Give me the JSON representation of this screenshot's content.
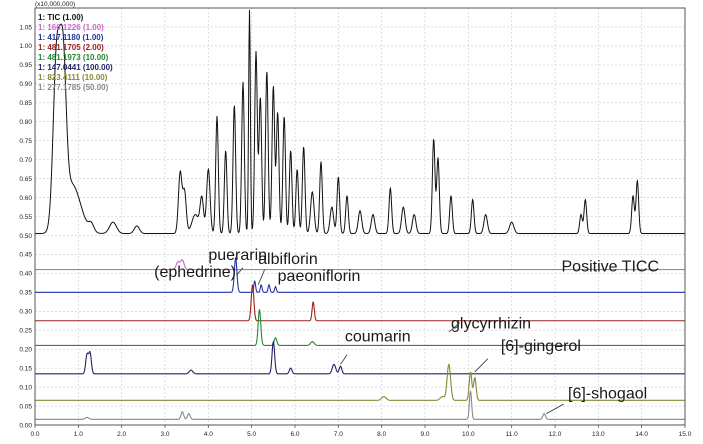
{
  "chart_data": {
    "type": "line",
    "title": "",
    "xlabel": "",
    "ylabel": "",
    "xlim": [
      0.0,
      15.0
    ],
    "ylim": [
      0.0,
      1.1
    ],
    "multiplier_label": "(x10,000,000)",
    "x_ticks": [
      "0.0",
      "1.0",
      "2.0",
      "3.0",
      "4.0",
      "5.0",
      "6.0",
      "7.0",
      "8.0",
      "9.0",
      "10.0",
      "11.0",
      "12.0",
      "13.0",
      "14.0",
      "15.0"
    ],
    "y_ticks": [
      "0.00",
      "0.05",
      "0.10",
      "0.15",
      "0.20",
      "0.25",
      "0.30",
      "0.35",
      "0.40",
      "0.45",
      "0.50",
      "0.55",
      "0.60",
      "0.65",
      "0.70",
      "0.75",
      "0.80",
      "0.85",
      "0.90",
      "0.95",
      "1.00",
      "1.05"
    ],
    "legend_position": "top-left",
    "legend": [
      {
        "text": "1: TIC (1.00)",
        "color": "#111111"
      },
      {
        "text": "1: 166.1226 (1.00)",
        "color": "#cc66cc"
      },
      {
        "text": "1: 417.1180 (1.00)",
        "color": "#2233aa"
      },
      {
        "text": "1: 481.1705 (2.00)",
        "color": "#992222"
      },
      {
        "text": "1: 481.1973 (10.00)",
        "color": "#228833"
      },
      {
        "text": "1: 147.0441 (100.00)",
        "color": "#222266"
      },
      {
        "text": "1: 823.4111 (10.00)",
        "color": "#888833"
      },
      {
        "text": "1: 277.1785 (50.00)",
        "color": "#888888"
      }
    ],
    "series": [
      {
        "color": "#111111",
        "baseline": 0.505,
        "peaks": [
          [
            0.5,
            0.45,
            0.08
          ],
          [
            0.65,
            0.37,
            0.07
          ],
          [
            0.85,
            0.13,
            0.2
          ],
          [
            1.3,
            0.02,
            0.06
          ],
          [
            1.8,
            0.03,
            0.08
          ],
          [
            2.35,
            0.02,
            0.06
          ],
          [
            3.35,
            0.16,
            0.04
          ],
          [
            3.45,
            0.11,
            0.04
          ],
          [
            3.7,
            0.05,
            0.08
          ],
          [
            3.85,
            0.09,
            0.04
          ],
          [
            4.0,
            0.17,
            0.04
          ],
          [
            4.2,
            0.31,
            0.03
          ],
          [
            4.4,
            0.22,
            0.03
          ],
          [
            4.6,
            0.34,
            0.03
          ],
          [
            4.8,
            0.4,
            0.03
          ],
          [
            4.95,
            0.59,
            0.02
          ],
          [
            5.1,
            0.48,
            0.03
          ],
          [
            5.2,
            0.36,
            0.03
          ],
          [
            5.35,
            0.43,
            0.03
          ],
          [
            5.5,
            0.39,
            0.03
          ],
          [
            5.6,
            0.32,
            0.03
          ],
          [
            5.75,
            0.31,
            0.03
          ],
          [
            5.9,
            0.22,
            0.03
          ],
          [
            6.05,
            0.17,
            0.03
          ],
          [
            6.2,
            0.23,
            0.03
          ],
          [
            6.4,
            0.11,
            0.04
          ],
          [
            6.6,
            0.19,
            0.03
          ],
          [
            6.85,
            0.07,
            0.04
          ],
          [
            7.0,
            0.15,
            0.03
          ],
          [
            7.2,
            0.1,
            0.03
          ],
          [
            7.5,
            0.06,
            0.04
          ],
          [
            7.8,
            0.05,
            0.04
          ],
          [
            8.2,
            0.12,
            0.03
          ],
          [
            8.5,
            0.07,
            0.04
          ],
          [
            8.75,
            0.05,
            0.04
          ],
          [
            9.2,
            0.25,
            0.03
          ],
          [
            9.3,
            0.2,
            0.03
          ],
          [
            9.6,
            0.1,
            0.03
          ],
          [
            10.1,
            0.09,
            0.03
          ],
          [
            10.4,
            0.05,
            0.04
          ],
          [
            11.0,
            0.03,
            0.05
          ],
          [
            12.6,
            0.05,
            0.03
          ],
          [
            12.7,
            0.09,
            0.03
          ],
          [
            13.8,
            0.1,
            0.03
          ],
          [
            13.9,
            0.14,
            0.03
          ]
        ]
      },
      {
        "color": "#cc66cc",
        "baseline": 0.41,
        "peaks": [
          [
            3.3,
            0.02,
            0.04
          ],
          [
            3.4,
            0.025,
            0.04
          ]
        ]
      },
      {
        "color": "#2233aa",
        "baseline": 0.35,
        "peaks": [
          [
            4.63,
            0.09,
            0.03
          ],
          [
            5.07,
            0.03,
            0.02
          ],
          [
            5.22,
            0.02,
            0.02
          ],
          [
            5.4,
            0.02,
            0.02
          ],
          [
            5.55,
            0.015,
            0.02
          ]
        ]
      },
      {
        "color": "#992222",
        "baseline": 0.275,
        "peaks": [
          [
            5.02,
            0.095,
            0.03
          ],
          [
            6.42,
            0.05,
            0.025
          ]
        ]
      },
      {
        "color": "#228833",
        "baseline": 0.21,
        "peaks": [
          [
            5.18,
            0.095,
            0.03
          ],
          [
            5.55,
            0.02,
            0.03
          ],
          [
            6.4,
            0.01,
            0.04
          ]
        ]
      },
      {
        "color": "#222266",
        "baseline": 0.135,
        "peaks": [
          [
            1.2,
            0.05,
            0.03
          ],
          [
            1.27,
            0.055,
            0.03
          ],
          [
            3.6,
            0.01,
            0.04
          ],
          [
            5.5,
            0.085,
            0.03
          ],
          [
            5.9,
            0.015,
            0.03
          ],
          [
            6.9,
            0.025,
            0.04
          ],
          [
            7.05,
            0.02,
            0.03
          ]
        ]
      },
      {
        "color": "#888833",
        "baseline": 0.065,
        "peaks": [
          [
            8.05,
            0.01,
            0.05
          ],
          [
            9.4,
            0.01,
            0.05
          ],
          [
            9.55,
            0.095,
            0.04
          ],
          [
            10.05,
            0.075,
            0.03
          ],
          [
            10.15,
            0.06,
            0.03
          ]
        ]
      },
      {
        "color": "#888888",
        "baseline": 0.015,
        "peaks": [
          [
            1.2,
            0.005,
            0.04
          ],
          [
            3.4,
            0.02,
            0.03
          ],
          [
            3.55,
            0.015,
            0.03
          ],
          [
            10.05,
            0.075,
            0.025
          ],
          [
            11.75,
            0.015,
            0.03
          ]
        ]
      }
    ],
    "annotations": [
      {
        "text": "puerarin",
        "x": 4.0,
        "y": 0.435
      },
      {
        "text": "albiflorin",
        "x": 5.15,
        "y": 0.425
      },
      {
        "text": "(ephedrine)",
        "x": 2.75,
        "y": 0.39
      },
      {
        "text": "paeoniflorin",
        "x": 5.6,
        "y": 0.38
      },
      {
        "text": "Positive TICC",
        "x": 12.15,
        "y": 0.405
      },
      {
        "text": "glycyrrhizin",
        "x": 9.6,
        "y": 0.255
      },
      {
        "text": "coumarin",
        "x": 7.15,
        "y": 0.22
      },
      {
        "text": "[6]-gingerol",
        "x": 10.75,
        "y": 0.195
      },
      {
        "text": "[6]-shogaol",
        "x": 12.3,
        "y": 0.07
      }
    ],
    "leaders": [
      {
        "from": [
          5.3,
          0.41
        ],
        "to": [
          5.15,
          0.37
        ]
      },
      {
        "from": [
          4.8,
          0.415
        ],
        "to": [
          4.65,
          0.395
        ]
      },
      {
        "from": [
          9.8,
          0.27
        ],
        "to": [
          9.55,
          0.245
        ]
      },
      {
        "from": [
          7.2,
          0.185
        ],
        "to": [
          7.05,
          0.16
        ]
      },
      {
        "from": [
          10.45,
          0.175
        ],
        "to": [
          10.15,
          0.14
        ]
      },
      {
        "from": [
          12.2,
          0.055
        ],
        "to": [
          11.8,
          0.03
        ]
      }
    ]
  }
}
